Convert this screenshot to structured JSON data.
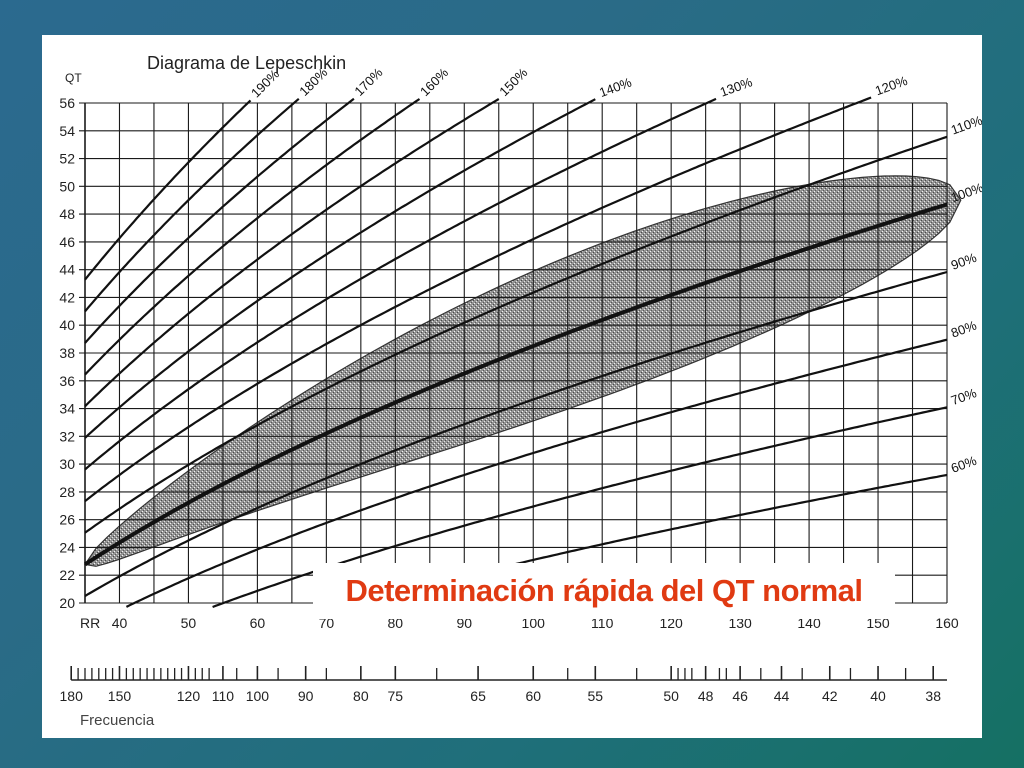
{
  "slide": {
    "callout": "Determinación rápida del QT normal",
    "colors": {
      "callout_text": "#e03a12",
      "curve": "#111111",
      "band": "#6a6a6a"
    }
  },
  "chart_data": {
    "type": "line",
    "title": "Diagrama de Lepeschkin",
    "ylabel": "QT",
    "xlabel": "RR",
    "ylim": [
      20,
      56
    ],
    "xlim": [
      35,
      160
    ],
    "y_ticks": [
      20,
      22,
      24,
      26,
      28,
      30,
      32,
      34,
      36,
      38,
      40,
      42,
      44,
      46,
      48,
      50,
      52,
      54,
      56
    ],
    "x_ticks": [
      40,
      50,
      60,
      70,
      80,
      90,
      100,
      110,
      120,
      130,
      140,
      150,
      160
    ],
    "x_start_label": "RR",
    "freq_label": "Frecuencia",
    "freq_ticks": [
      {
        "label": "180",
        "rr": 33
      },
      {
        "label": "150",
        "rr": 40
      },
      {
        "label": "120",
        "rr": 50
      },
      {
        "label": "110",
        "rr": 55
      },
      {
        "label": "100",
        "rr": 60
      },
      {
        "label": "90",
        "rr": 67
      },
      {
        "label": "80",
        "rr": 75
      },
      {
        "label": "75",
        "rr": 80
      },
      {
        "label": "65",
        "rr": 92
      },
      {
        "label": "60",
        "rr": 100
      },
      {
        "label": "55",
        "rr": 109
      },
      {
        "label": "50",
        "rr": 120
      },
      {
        "label": "48",
        "rr": 125
      },
      {
        "label": "46",
        "rr": 130
      },
      {
        "label": "44",
        "rr": 136
      },
      {
        "label": "42",
        "rr": 143
      },
      {
        "label": "40",
        "rr": 150
      },
      {
        "label": "38",
        "rr": 158
      }
    ],
    "freq_minor_rr": [
      34,
      35,
      36,
      37,
      38,
      39,
      41,
      42,
      43,
      44,
      45,
      46,
      47,
      48,
      49,
      51,
      52,
      53,
      57,
      63,
      70,
      86,
      105,
      115,
      121,
      122,
      123,
      127,
      128,
      133,
      139,
      146,
      154
    ],
    "reference_rr": 100,
    "reference_qt": 38.5,
    "exponent": 0.5,
    "series": [
      {
        "name": "190%",
        "pct": 190
      },
      {
        "name": "180%",
        "pct": 180
      },
      {
        "name": "170%",
        "pct": 170
      },
      {
        "name": "160%",
        "pct": 160
      },
      {
        "name": "150%",
        "pct": 150
      },
      {
        "name": "140%",
        "pct": 140
      },
      {
        "name": "130%",
        "pct": 130
      },
      {
        "name": "120%",
        "pct": 120
      },
      {
        "name": "110%",
        "pct": 110
      },
      {
        "name": "100%",
        "pct": 100
      },
      {
        "name": "90%",
        "pct": 90
      },
      {
        "name": "80%",
        "pct": 80
      },
      {
        "name": "70%",
        "pct": 70
      },
      {
        "name": "60%",
        "pct": 60
      }
    ],
    "normal_band": {
      "lower_pct": 90,
      "upper_pct": 110,
      "rr_range": [
        35,
        162
      ]
    }
  }
}
